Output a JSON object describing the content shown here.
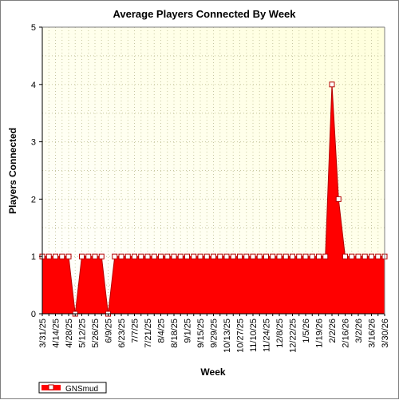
{
  "chart_data": {
    "type": "area",
    "title": "Average Players Connected By Week",
    "xlabel": "Week",
    "ylabel": "Players Connected",
    "ylim": [
      0,
      5
    ],
    "yticks": [
      0,
      1,
      2,
      3,
      4,
      5
    ],
    "grid": true,
    "legend_position": "bottom-left",
    "x_tick_labels": [
      "3/31/25",
      "4/14/25",
      "4/28/25",
      "5/12/25",
      "5/26/25",
      "6/9/25",
      "6/23/25",
      "7/7/25",
      "7/21/25",
      "8/4/25",
      "8/18/25",
      "9/1/25",
      "9/15/25",
      "9/29/25",
      "10/13/25",
      "10/27/25",
      "11/10/25",
      "11/24/25",
      "12/8/25",
      "12/22/25",
      "1/5/26",
      "1/19/26",
      "2/2/26",
      "2/16/26",
      "3/2/26",
      "3/16/26",
      "3/30/26"
    ],
    "x": [
      "3/31/25",
      "4/7/25",
      "4/14/25",
      "4/21/25",
      "4/28/25",
      "5/5/25",
      "5/12/25",
      "5/19/25",
      "5/26/25",
      "6/2/25",
      "6/9/25",
      "6/16/25",
      "6/23/25",
      "6/30/25",
      "7/7/25",
      "7/14/25",
      "7/21/25",
      "7/28/25",
      "8/4/25",
      "8/11/25",
      "8/18/25",
      "8/25/25",
      "9/1/25",
      "9/8/25",
      "9/15/25",
      "9/22/25",
      "9/29/25",
      "10/6/25",
      "10/13/25",
      "10/20/25",
      "10/27/25",
      "11/3/25",
      "11/10/25",
      "11/17/25",
      "11/24/25",
      "12/1/25",
      "12/8/25",
      "12/15/25",
      "12/22/25",
      "12/29/25",
      "1/5/26",
      "1/12/26",
      "1/19/26",
      "1/26/26",
      "2/2/26",
      "2/9/26",
      "2/16/26",
      "2/23/26",
      "3/2/26",
      "3/9/26",
      "3/16/26",
      "3/23/26",
      "3/30/26"
    ],
    "series": [
      {
        "name": "GNSmud",
        "color": "#ff0000",
        "values": [
          1,
          1,
          1,
          1,
          1,
          0,
          1,
          1,
          1,
          1,
          0,
          1,
          1,
          1,
          1,
          1,
          1,
          1,
          1,
          1,
          1,
          1,
          1,
          1,
          1,
          1,
          1,
          1,
          1,
          1,
          1,
          1,
          1,
          1,
          1,
          1,
          1,
          1,
          1,
          1,
          1,
          1,
          1,
          1,
          4,
          2,
          1,
          1,
          1,
          1,
          1,
          1,
          1
        ]
      }
    ],
    "colors": {
      "plot_bg_top_right": "#ffffdc",
      "plot_bg_bottom_left": "#ffffff",
      "grid": "#c8c8a0",
      "fill": "#ff0000",
      "line": "#b40000",
      "marker_fill": "#ffffff"
    }
  }
}
